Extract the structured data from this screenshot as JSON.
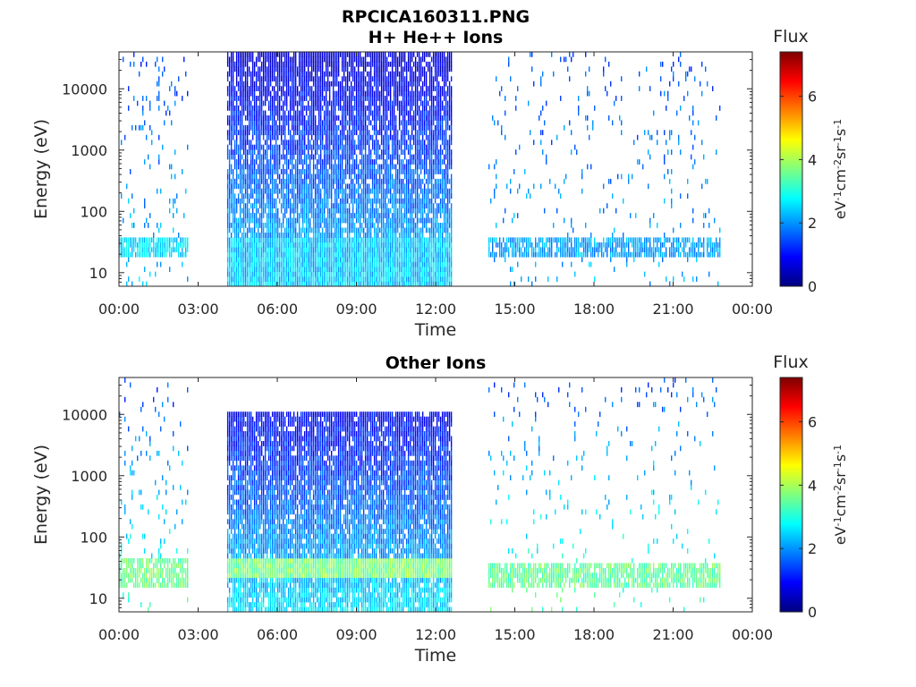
{
  "title": "RPCICA160311.PNG",
  "colorbar": {
    "label": "Flux",
    "units_main": "eV",
    "units_parts": [
      "eV",
      "-1",
      "cm",
      "-2",
      "sr",
      "-1",
      "s",
      "-1"
    ],
    "ticks": [
      0,
      2,
      4,
      6
    ],
    "range": [
      0,
      7.4
    ],
    "colormap": "jet",
    "colors": [
      "#00007f",
      "#0000ff",
      "#007fff",
      "#00ffff",
      "#7fff7f",
      "#ffff00",
      "#ff7f00",
      "#ff0000",
      "#7f0000"
    ]
  },
  "chart_data": [
    {
      "type": "heatmap",
      "subtitle": "H+ He++ Ions",
      "xlabel": "Time",
      "ylabel": "Energy (eV)",
      "xticks": [
        "00:00",
        "03:00",
        "06:00",
        "09:00",
        "12:00",
        "15:00",
        "18:00",
        "21:00",
        "00:00"
      ],
      "xlim_hours": [
        0,
        24
      ],
      "ylim_eV": [
        6,
        40000
      ],
      "yscale": "log",
      "yticks": [
        {
          "value": 10,
          "label": "10"
        },
        {
          "value": 100,
          "label": "100"
        },
        {
          "value": 1000,
          "label": "1000"
        },
        {
          "value": 10000,
          "label": "10000"
        }
      ],
      "regions": [
        {
          "t_start": 0.0,
          "t_end": 2.6,
          "e_min": 6,
          "e_max": 40000,
          "density": 0.07,
          "flux_low": 2.4,
          "flux_high": 1.4,
          "band": {
            "e_min": 17,
            "e_max": 38,
            "flux": 2.6
          }
        },
        {
          "t_start": 4.1,
          "t_end": 12.6,
          "e_min": 6,
          "e_max": 40000,
          "density": 0.85,
          "flux_low": 2.5,
          "flux_high": 0.6,
          "band": {
            "e_min": 6,
            "e_max": 40,
            "flux": 2.4
          }
        },
        {
          "t_start": 14.0,
          "t_end": 22.8,
          "e_min": 6,
          "e_max": 40000,
          "density": 0.05,
          "flux_low": 2.2,
          "flux_high": 1.5,
          "band": {
            "e_min": 17,
            "e_max": 38,
            "flux": 2.1
          }
        }
      ]
    },
    {
      "type": "heatmap",
      "subtitle": "Other Ions",
      "xlabel": "Time",
      "ylabel": "Energy (eV)",
      "xticks": [
        "00:00",
        "03:00",
        "06:00",
        "09:00",
        "12:00",
        "15:00",
        "18:00",
        "21:00",
        "00:00"
      ],
      "xlim_hours": [
        0,
        24
      ],
      "ylim_eV": [
        6,
        40000
      ],
      "yscale": "log",
      "yticks": [
        {
          "value": 10,
          "label": "10"
        },
        {
          "value": 100,
          "label": "100"
        },
        {
          "value": 1000,
          "label": "1000"
        },
        {
          "value": 10000,
          "label": "10000"
        }
      ],
      "regions": [
        {
          "t_start": 0.0,
          "t_end": 2.6,
          "e_min": 6,
          "e_max": 40000,
          "density": 0.05,
          "flux_low": 3.2,
          "flux_high": 1.4,
          "band": {
            "e_min": 16,
            "e_max": 42,
            "flux": 3.6
          }
        },
        {
          "t_start": 4.1,
          "t_end": 12.6,
          "e_min": 6,
          "e_max": 11000,
          "density": 0.88,
          "flux_low": 2.6,
          "flux_high": 0.6,
          "band": {
            "e_min": 20,
            "e_max": 45,
            "flux": 3.7
          }
        },
        {
          "t_start": 14.0,
          "t_end": 22.8,
          "e_min": 6,
          "e_max": 40000,
          "density": 0.04,
          "flux_low": 3.4,
          "flux_high": 1.5,
          "band": {
            "e_min": 16,
            "e_max": 40,
            "flux": 3.5
          }
        }
      ]
    }
  ]
}
